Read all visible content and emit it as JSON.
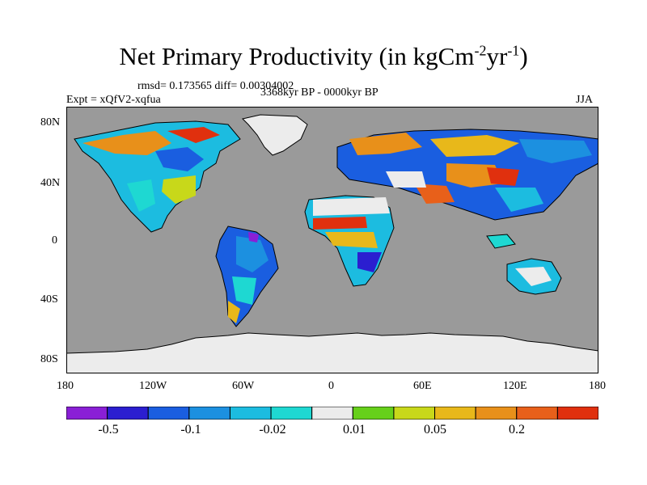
{
  "title": {
    "main": "Net Primary Productivity (in kgCm",
    "sup1": "-2",
    "mid": "yr",
    "sup2": "-1",
    "end": ")"
  },
  "rmsd_text": "rmsd= 0.173565 diff= 0.00304002",
  "expt_text": "Expt = xQfV2-xqfua",
  "period_text": "3368kyr BP - 0000kyr BP",
  "season_text": "JJA",
  "lat_ticks": [
    "80N",
    "40N",
    "0",
    "40S",
    "80S"
  ],
  "lon_ticks": [
    "180",
    "120W",
    "60W",
    "0",
    "60E",
    "120E",
    "180"
  ],
  "colorbar": {
    "colors": [
      "#8a1fd6",
      "#2b1ed0",
      "#1a5ee0",
      "#1c90e0",
      "#1cbce0",
      "#1ed8d2",
      "#ececec",
      "#66d01a",
      "#c8d81a",
      "#e8b81a",
      "#e8901a",
      "#e8601a",
      "#e0300e"
    ],
    "labels": [
      "-0.5",
      "-0.1",
      "-0.02",
      "0.01",
      "0.05",
      "0.2"
    ]
  },
  "colors": {
    "ocean": "#9a9a9a",
    "ice": "#ececec",
    "coast": "#000000"
  }
}
